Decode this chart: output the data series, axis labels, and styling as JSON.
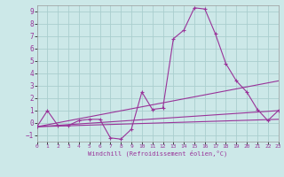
{
  "xlabel": "Windchill (Refroidissement éolien,°C)",
  "bg_color": "#cce8e8",
  "grid_color": "#aacece",
  "line_color": "#993399",
  "xlim": [
    0,
    23
  ],
  "ylim": [
    -1.5,
    9.5
  ],
  "xticks": [
    0,
    1,
    2,
    3,
    4,
    5,
    6,
    7,
    8,
    9,
    10,
    11,
    12,
    13,
    14,
    15,
    16,
    17,
    18,
    19,
    20,
    21,
    22,
    23
  ],
  "yticks": [
    -1,
    0,
    1,
    2,
    3,
    4,
    5,
    6,
    7,
    8,
    9
  ],
  "series": [
    [
      0,
      -0.3
    ],
    [
      1,
      1.0
    ],
    [
      2,
      -0.2
    ],
    [
      3,
      -0.2
    ],
    [
      4,
      0.2
    ],
    [
      5,
      0.3
    ],
    [
      6,
      0.3
    ],
    [
      7,
      -1.2
    ],
    [
      8,
      -1.3
    ],
    [
      9,
      -0.5
    ],
    [
      10,
      2.5
    ],
    [
      11,
      1.1
    ],
    [
      12,
      1.2
    ],
    [
      13,
      6.8
    ],
    [
      14,
      7.5
    ],
    [
      15,
      9.3
    ],
    [
      16,
      9.2
    ],
    [
      17,
      7.2
    ],
    [
      18,
      4.8
    ],
    [
      19,
      3.4
    ],
    [
      20,
      2.5
    ],
    [
      21,
      1.1
    ],
    [
      22,
      0.2
    ],
    [
      23,
      1.0
    ]
  ],
  "line2": [
    [
      0,
      -0.3
    ],
    [
      23,
      3.4
    ]
  ],
  "line3": [
    [
      0,
      -0.3
    ],
    [
      23,
      1.0
    ]
  ],
  "line4": [
    [
      0,
      -0.3
    ],
    [
      23,
      0.3
    ]
  ]
}
